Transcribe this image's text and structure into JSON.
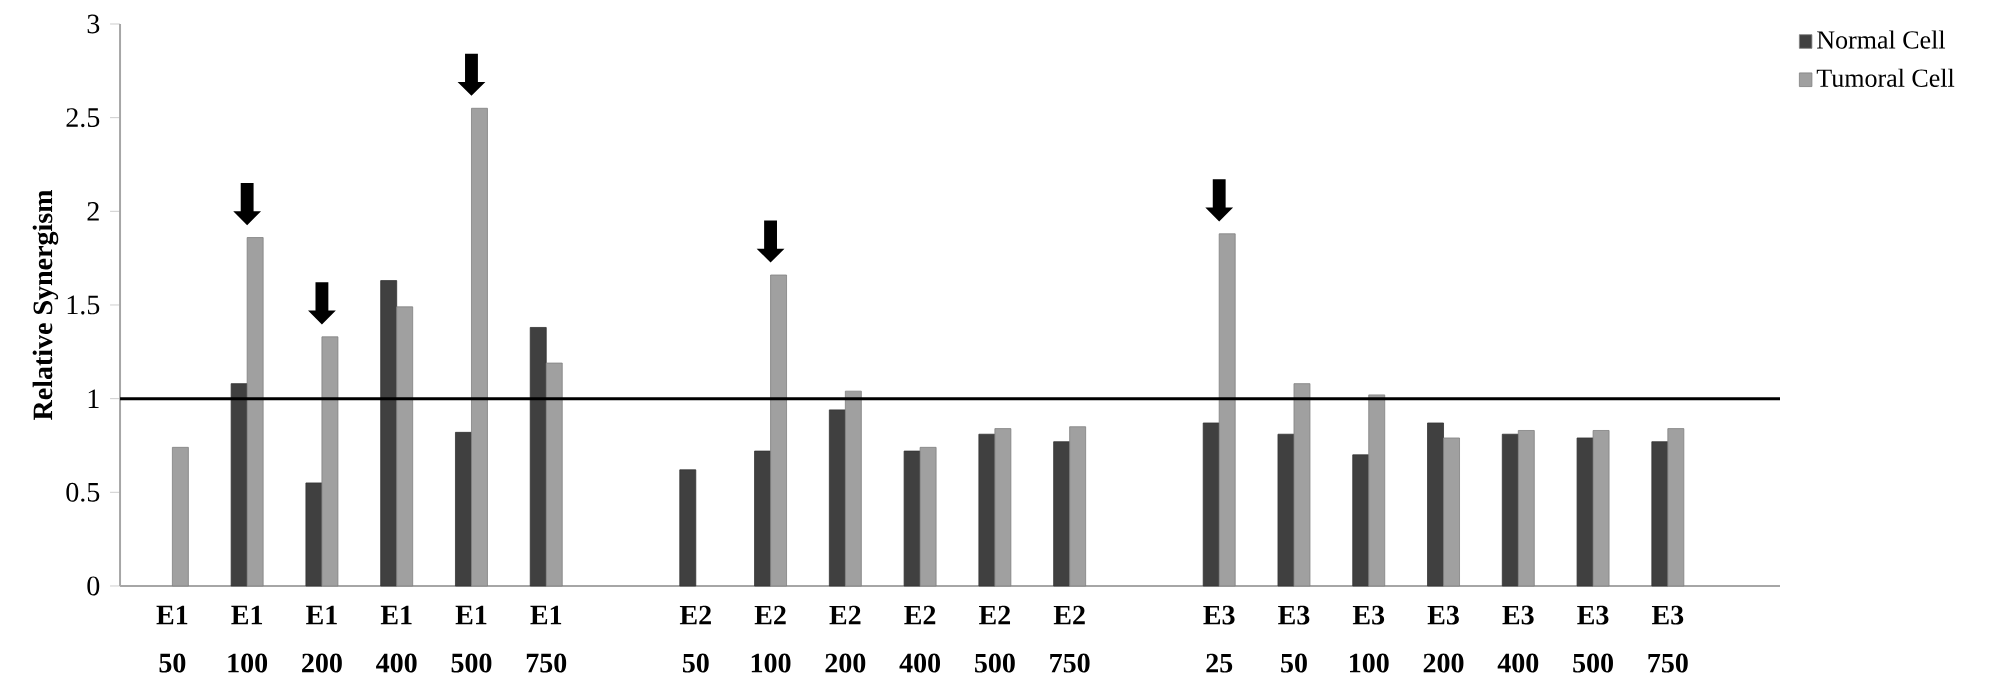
{
  "chart_data": {
    "type": "bar",
    "ylabel": "Relative Synergism",
    "categories": [
      "E1 50",
      "E1 100",
      "E1 200",
      "E1 400",
      "E1 500",
      "E1 750",
      null,
      "E2 50",
      "E2 100",
      "E2 200",
      "E2 400",
      "E2 500",
      "E2 750",
      null,
      "E3 25",
      "E3 50",
      "E3 100",
      "E3 200",
      "E3 400",
      "E3 500",
      "E3 750"
    ],
    "series": [
      {
        "name": "Normal Cell",
        "color": "#404040",
        "values": [
          null,
          1.08,
          0.55,
          1.63,
          0.82,
          1.38,
          null,
          0.62,
          0.72,
          0.94,
          0.72,
          0.81,
          0.77,
          null,
          0.87,
          0.81,
          0.7,
          0.87,
          0.81,
          0.79,
          0.77
        ]
      },
      {
        "name": "Tumoral Cell",
        "color": "#a0a0a0",
        "values": [
          0.74,
          1.86,
          1.33,
          1.49,
          2.55,
          1.19,
          null,
          null,
          1.66,
          1.04,
          0.74,
          0.84,
          0.85,
          null,
          1.88,
          1.08,
          1.02,
          0.79,
          0.83,
          0.83,
          0.84
        ]
      }
    ],
    "ylim": [
      0,
      3
    ],
    "yticks": [
      0,
      0.5,
      1,
      1.5,
      2,
      2.5,
      3
    ],
    "ref_lines": [
      {
        "axis": "y",
        "value": 1,
        "color": "#000000"
      }
    ],
    "annotations": [
      {
        "text": "⬇",
        "x": "E1 100",
        "y": 1.86
      },
      {
        "text": "⬇",
        "x": "E1 200",
        "y": 1.33
      },
      {
        "text": "⬇",
        "x": "E1 500",
        "y": 2.55
      },
      {
        "text": "⬇",
        "x": "E2 100",
        "y": 1.66
      },
      {
        "text": "⬇",
        "x": "E3 25",
        "y": 1.88
      }
    ],
    "grid": false,
    "legend": "top right"
  }
}
